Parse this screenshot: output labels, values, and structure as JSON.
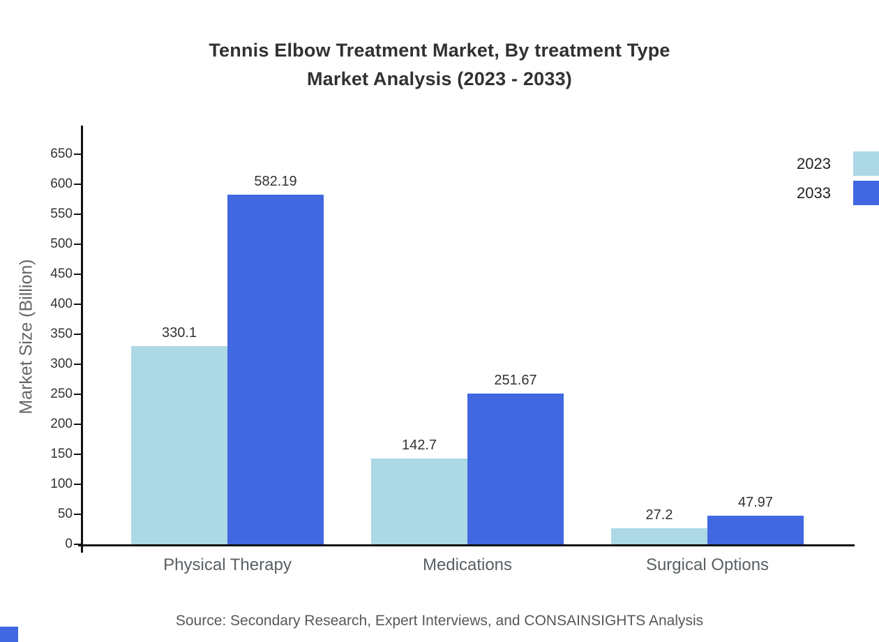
{
  "title": {
    "line1": "Tennis Elbow Treatment Market, By treatment Type",
    "line2": "Market Analysis (2023 - 2033)"
  },
  "chart_data": {
    "type": "bar",
    "categories": [
      "Physical Therapy",
      "Medications",
      "Surgical Options"
    ],
    "series": [
      {
        "name": "2023",
        "color": "#add8e6",
        "values": [
          330.1,
          142.7,
          27.2
        ]
      },
      {
        "name": "2033",
        "color": "#4168e1",
        "values": [
          582.19,
          251.67,
          47.97
        ]
      }
    ],
    "value_labels": {
      "2023": [
        "330.1",
        "142.7",
        "27.2"
      ],
      "2033": [
        "582.19",
        "251.67",
        "47.97"
      ]
    },
    "title": "Tennis Elbow Treatment Market, By treatment Type Market Analysis (2023 - 2033)",
    "xlabel": "",
    "ylabel": "Market Size (Billion)",
    "ylim": [
      0,
      650
    ],
    "ytick_step": 50,
    "ytick_labels": [
      "0",
      "50",
      "100",
      "150",
      "200",
      "250",
      "300",
      "350",
      "400",
      "450",
      "500",
      "550",
      "600",
      "650"
    ],
    "grid": false,
    "legend_position": "top-right"
  },
  "source": "Source: Secondary Research, Expert Interviews, and CONSAINSIGHTS Analysis",
  "colors": {
    "axis": "#111111",
    "title_text": "#2f3133",
    "tick_text": "#333333",
    "category_text": "#595f63",
    "series_2023": "#add8e6",
    "series_2033": "#4168e1"
  }
}
